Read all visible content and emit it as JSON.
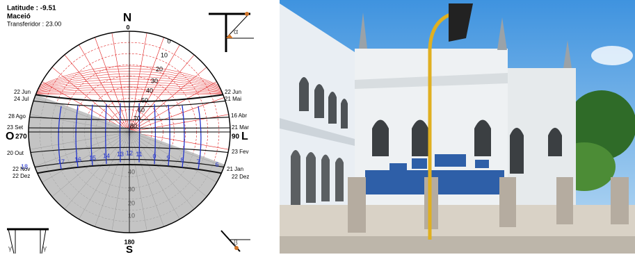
{
  "header": {
    "latitude": "Latitude : -9.51",
    "city": "Maceió",
    "protractor": "Transferidor : 23.00"
  },
  "compass": {
    "north": "N",
    "north_deg": "0",
    "south": "S",
    "south_deg": "180",
    "west": "O",
    "west_deg": "270",
    "east": "L",
    "east_deg": "90"
  },
  "dates_left": [
    "22 Jun",
    "24 Jul",
    "28 Ago",
    "23 Set",
    "20 Out",
    "22 Nov",
    "22 Dez"
  ],
  "dates_right": [
    "22 Jun",
    "21 Mai",
    "16 Abr",
    "21 Mar",
    "23 Fev",
    "21 Jan",
    "22 Dez"
  ],
  "altitudes": [
    "0",
    "10",
    "20",
    "30",
    "40",
    "50",
    "60",
    "70",
    "80"
  ],
  "altitudes_below": [
    "40",
    "30",
    "20",
    "10"
  ],
  "hours": [
    "18",
    "17",
    "16",
    "15",
    "14",
    "13",
    "12",
    "11",
    "0",
    "9",
    "8",
    "7",
    "6"
  ],
  "angles": {
    "alpha": "α",
    "beta": "β",
    "gamma_left": "γ",
    "gamma_right": "γ"
  }
}
